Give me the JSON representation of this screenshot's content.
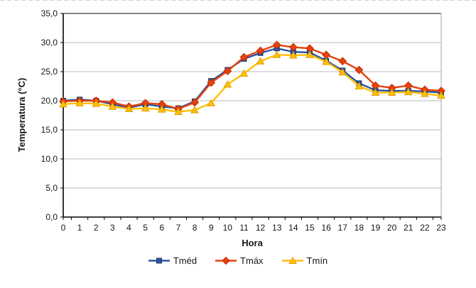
{
  "chart_data": {
    "type": "line",
    "title": "",
    "xlabel": "Hora",
    "ylabel": "Temperatura (°C)",
    "x": [
      0,
      1,
      2,
      3,
      4,
      5,
      6,
      7,
      8,
      9,
      10,
      11,
      12,
      13,
      14,
      15,
      16,
      17,
      18,
      19,
      20,
      21,
      22,
      23
    ],
    "xtick_labels": [
      "0",
      "1",
      "2",
      "3",
      "4",
      "5",
      "6",
      "7",
      "8",
      "9",
      "10",
      "11",
      "12",
      "13",
      "14",
      "15",
      "16",
      "17",
      "18",
      "19",
      "20",
      "21",
      "22",
      "23"
    ],
    "ylim": [
      0,
      35
    ],
    "ytick_step": 5,
    "ytick_labels": [
      "0,0",
      "5,0",
      "10,0",
      "15,0",
      "20,0",
      "25,0",
      "30,0",
      "35,0"
    ],
    "grid": "horizontal",
    "legend_position": "bottom",
    "series": [
      {
        "name": "Tméd",
        "marker": "square",
        "color": "#2A549E",
        "edge_color": "#1B3A6F",
        "values": [
          20.0,
          20.2,
          20.0,
          19.4,
          18.8,
          19.4,
          19.0,
          18.7,
          19.9,
          23.4,
          25.3,
          27.2,
          28.2,
          29.0,
          28.4,
          28.3,
          26.9,
          25.2,
          23.0,
          21.8,
          21.7,
          21.7,
          21.6,
          21.4
        ]
      },
      {
        "name": "Tmáx",
        "marker": "diamond",
        "color": "#E8400C",
        "edge_color": "#BB3109",
        "values": [
          19.9,
          20.0,
          20.0,
          19.7,
          19.0,
          19.6,
          19.4,
          18.6,
          19.7,
          23.1,
          25.1,
          27.5,
          28.6,
          29.6,
          29.2,
          29.0,
          27.9,
          26.8,
          25.3,
          22.6,
          22.2,
          22.6,
          21.9,
          21.7
        ]
      },
      {
        "name": "Tmín",
        "marker": "triangle",
        "color": "#FFC003",
        "edge_color": "#E29D02",
        "values": [
          19.4,
          19.6,
          19.5,
          19.0,
          18.6,
          18.7,
          18.5,
          18.1,
          18.4,
          19.6,
          22.8,
          24.7,
          26.8,
          27.9,
          27.8,
          27.9,
          26.7,
          24.9,
          22.5,
          21.4,
          21.4,
          21.5,
          21.2,
          20.9
        ]
      }
    ]
  },
  "colors": {
    "gridline": "#b8b8b8",
    "plot_border_top": "#3f3f3f",
    "plot_border_right": "#a6a6a6",
    "axis": "#000000",
    "text": "#151515",
    "frame_dash": "#d2d2d2"
  }
}
